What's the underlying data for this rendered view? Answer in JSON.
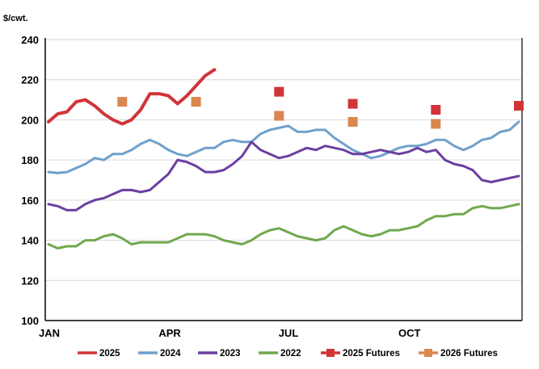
{
  "chart_data": {
    "type": "line",
    "ylabel": "$/cwt.",
    "ylim": [
      100,
      240
    ],
    "yticks": [
      "100",
      "120",
      "140",
      "160",
      "180",
      "200",
      "220",
      "240"
    ],
    "x_unit": "week of year",
    "xlim": [
      1,
      52
    ],
    "xticks": [
      {
        "label": "JAN",
        "week": 1
      },
      {
        "label": "APR",
        "week": 14
      },
      {
        "label": "JUL",
        "week": 27
      },
      {
        "label": "OCT",
        "week": 40
      }
    ],
    "grid": "horizontal",
    "legend": "bottom",
    "series": [
      {
        "name": "2025",
        "color": "#d13438",
        "marker": "line",
        "values": [
          199,
          203,
          204,
          209,
          210,
          207,
          203,
          200,
          198,
          200,
          205,
          213,
          213,
          212,
          208,
          212,
          217,
          222,
          225
        ]
      },
      {
        "name": "2024",
        "color": "#6fa0cc",
        "marker": "line",
        "values": [
          174,
          173.5,
          174,
          176,
          178,
          181,
          180,
          183,
          183,
          185,
          188,
          190,
          188,
          185,
          183,
          182,
          184,
          186,
          186,
          189,
          190,
          189,
          189,
          193,
          195,
          196,
          197,
          194,
          194,
          195,
          195,
          191,
          188,
          185,
          183,
          181,
          182,
          184,
          186,
          187,
          187,
          188,
          190,
          190,
          187,
          185,
          187,
          190,
          191,
          194,
          195,
          199
        ]
      },
      {
        "name": "2023",
        "color": "#6b3fa0",
        "marker": "line",
        "values": [
          158,
          157,
          155,
          155,
          158,
          160,
          161,
          163,
          165,
          165,
          164,
          165,
          169,
          173,
          180,
          179,
          177,
          174,
          174,
          175,
          178,
          182,
          189,
          185,
          183,
          181,
          182,
          184,
          186,
          185,
          187,
          186,
          185,
          183,
          183,
          184,
          185,
          184,
          183,
          184,
          186,
          184,
          185,
          180,
          178,
          177,
          175,
          170,
          169,
          170,
          171,
          172
        ]
      },
      {
        "name": "2022",
        "color": "#70a84f",
        "marker": "line",
        "values": [
          138,
          136,
          137,
          137,
          140,
          140,
          142,
          143,
          141,
          138,
          139,
          139,
          139,
          139,
          141,
          143,
          143,
          143,
          142,
          140,
          139,
          138,
          140,
          143,
          145,
          146,
          144,
          142,
          141,
          140,
          141,
          145,
          147,
          145,
          143,
          142,
          143,
          145,
          145,
          146,
          147,
          150,
          152,
          152,
          153,
          153,
          156,
          157,
          156,
          156,
          157,
          158
        ]
      },
      {
        "name": "2025 Futures",
        "color": "#d13438",
        "marker": "square",
        "points": [
          {
            "week": 26,
            "value": 214
          },
          {
            "week": 34,
            "value": 208
          },
          {
            "week": 43,
            "value": 205
          },
          {
            "week": 52,
            "value": 207
          }
        ]
      },
      {
        "name": "2026 Futures",
        "color": "#d9874f",
        "marker": "square",
        "points": [
          {
            "week": 9,
            "value": 209
          },
          {
            "week": 17,
            "value": 209
          },
          {
            "week": 26,
            "value": 202
          },
          {
            "week": 34,
            "value": 199
          },
          {
            "week": 43,
            "value": 198
          }
        ]
      }
    ]
  }
}
